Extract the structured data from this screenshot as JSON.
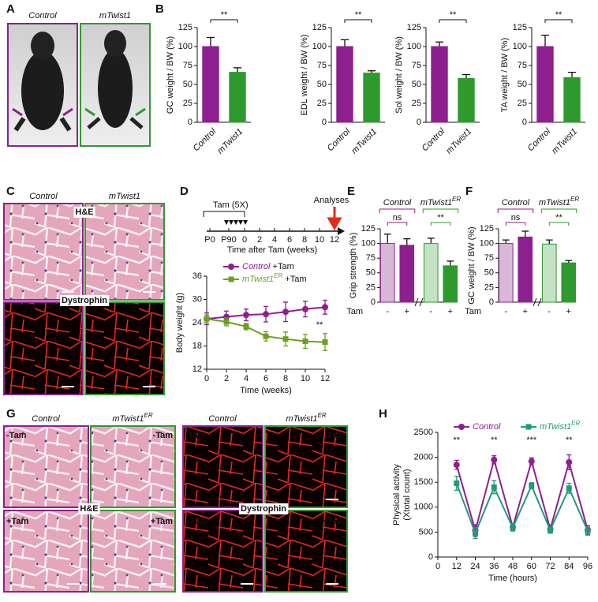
{
  "figure": {
    "panel_labels": [
      "A",
      "B",
      "C",
      "D",
      "E",
      "F",
      "G",
      "H"
    ],
    "photo_A": {
      "labels": [
        "Control",
        "mTwist1"
      ]
    },
    "histology_C": {
      "columns": [
        "Control",
        "mTwist1"
      ],
      "stains": [
        "H&E",
        "Dystrophin"
      ]
    },
    "histology_G": {
      "columns": [
        {
          "text": "Control"
        },
        {
          "text": "mTwist1",
          "sup": "ER"
        },
        {
          "text": "Control"
        },
        {
          "text": "mTwist1",
          "sup": "ER"
        }
      ],
      "conditions": [
        "-Tam",
        "+Tam"
      ],
      "stains": [
        "H&E",
        "Dystrophin"
      ]
    },
    "timeline": {
      "treatment": "Tam (5X)",
      "endpoint": "Analyses",
      "labels": [
        "P0",
        "P90",
        "0",
        "2",
        "4",
        "6",
        "8",
        "10",
        "12"
      ],
      "axis_label": "Time after Tam (weeks)"
    }
  },
  "chart_data": [
    {
      "type": "bar",
      "ylabel": "GC weight / BW (%)",
      "categories": [
        "Control",
        "mTwist1"
      ],
      "values": [
        100,
        66
      ],
      "errors": [
        12,
        6
      ],
      "colors": [
        "#8e1f8e",
        "#2e9a2e"
      ],
      "ylim": [
        0,
        125
      ],
      "yticks": [
        0,
        25,
        50,
        75,
        100,
        125
      ],
      "significance": "**"
    },
    {
      "type": "bar",
      "ylabel": "EDL weight / BW (%)",
      "categories": [
        "Control",
        "mTwist1"
      ],
      "values": [
        100,
        65
      ],
      "errors": [
        9,
        3
      ],
      "colors": [
        "#8e1f8e",
        "#2e9a2e"
      ],
      "ylim": [
        0,
        125
      ],
      "yticks": [
        0,
        25,
        50,
        75,
        100,
        125
      ],
      "significance": "**"
    },
    {
      "type": "bar",
      "ylabel": "Sol weight / BW (%)",
      "categories": [
        "Control",
        "mTwist1"
      ],
      "values": [
        100,
        58
      ],
      "errors": [
        6,
        5
      ],
      "colors": [
        "#8e1f8e",
        "#2e9a2e"
      ],
      "ylim": [
        0,
        125
      ],
      "yticks": [
        0,
        25,
        50,
        75,
        100,
        125
      ],
      "significance": "**"
    },
    {
      "type": "bar",
      "ylabel": "TA weight / BW (%)",
      "categories": [
        "Control",
        "mTwist1"
      ],
      "values": [
        100,
        59
      ],
      "errors": [
        15,
        7
      ],
      "colors": [
        "#8e1f8e",
        "#2e9a2e"
      ],
      "ylim": [
        0,
        125
      ],
      "yticks": [
        0,
        25,
        50,
        75,
        100,
        125
      ],
      "significance": "**"
    },
    {
      "type": "line",
      "ylabel": "Body weight (g)",
      "xlabel": "Time (weeks)",
      "x": [
        0,
        2,
        4,
        6,
        8,
        10,
        12
      ],
      "xlim": [
        0,
        12
      ],
      "xticks": [
        0,
        2,
        4,
        6,
        8,
        10,
        12
      ],
      "ylim": [
        12,
        36
      ],
      "yticks": [
        12,
        18,
        24,
        30,
        36
      ],
      "series": [
        {
          "name": "Control",
          "name_suffix": " +Tam",
          "color": "#8e1f8e",
          "marker": "circle",
          "values": [
            25,
            25.5,
            26,
            26.2,
            26.8,
            27.5,
            28
          ],
          "errors": [
            1.5,
            1.5,
            1.5,
            2,
            2.5,
            2,
            1.8
          ]
        },
        {
          "name": "mTwist1",
          "name_sup": "ER",
          "name_suffix": " +Tam",
          "color": "#6aa121",
          "marker": "square",
          "values": [
            25,
            24.2,
            23,
            20.5,
            19.8,
            19.2,
            19
          ],
          "errors": [
            1,
            1,
            0.8,
            1.2,
            1.8,
            1.8,
            2.2
          ]
        }
      ],
      "annotations": [
        "**"
      ]
    },
    {
      "type": "grouped-bar",
      "ylabel": "Grip strength (%)",
      "treatment_label": "Tam",
      "groups": [
        {
          "text": "Control"
        },
        {
          "text": "mTwist1",
          "sup": "ER"
        }
      ],
      "group_colors": [
        "#8e1f8e",
        "#2e9a2e"
      ],
      "categories": [
        "-",
        "+",
        "-",
        "+"
      ],
      "values": [
        100,
        97,
        100,
        62
      ],
      "errors": [
        16,
        11,
        9,
        8
      ],
      "colors": [
        "#d7b9d7",
        "#8e1f8e",
        "#c4e3c4",
        "#2e9a2e"
      ],
      "ylim": [
        0,
        125
      ],
      "yticks": [
        0,
        25,
        50,
        75,
        100,
        125
      ],
      "significance": [
        "ns",
        "**"
      ]
    },
    {
      "type": "grouped-bar",
      "ylabel": "GC weight / BW (%)",
      "treatment_label": "Tam",
      "groups": [
        {
          "text": "Control"
        },
        {
          "text": "mTwist1",
          "sup": "ER"
        }
      ],
      "group_colors": [
        "#8e1f8e",
        "#2e9a2e"
      ],
      "categories": [
        "-",
        "+",
        "-",
        "+"
      ],
      "values": [
        100,
        111,
        99,
        67
      ],
      "errors": [
        6,
        10,
        7,
        4
      ],
      "colors": [
        "#d7b9d7",
        "#8e1f8e",
        "#c4e3c4",
        "#2e9a2e"
      ],
      "ylim": [
        0,
        125
      ],
      "yticks": [
        0,
        25,
        50,
        75,
        100,
        125
      ],
      "significance": [
        "ns",
        "**"
      ]
    },
    {
      "type": "line",
      "ylabel": [
        "Physical activity",
        "(Xtotal count)"
      ],
      "xlabel": "Time (hours)",
      "x": [
        12,
        24,
        36,
        48,
        60,
        72,
        84,
        96
      ],
      "xlim": [
        0,
        96
      ],
      "xticks": [
        0,
        12,
        24,
        36,
        48,
        60,
        72,
        84,
        96
      ],
      "ylim": [
        0,
        2500
      ],
      "yticks": [
        0,
        500,
        1000,
        1500,
        2000,
        2500
      ],
      "series": [
        {
          "name": "Control",
          "color": "#8e1f8e",
          "marker": "circle",
          "values": [
            1850,
            530,
            1950,
            600,
            1920,
            560,
            1900,
            540
          ],
          "errors": [
            90,
            120,
            80,
            60,
            70,
            80,
            150,
            90
          ]
        },
        {
          "name": "mTwist1",
          "name_sup": "ER",
          "color": "#22997a",
          "marker": "square",
          "values": [
            1480,
            480,
            1400,
            590,
            1430,
            540,
            1380,
            520
          ],
          "errors": [
            140,
            110,
            130,
            70,
            60,
            60,
            100,
            80
          ]
        }
      ],
      "annotations": [
        "**",
        "**",
        "***",
        "**"
      ]
    }
  ]
}
